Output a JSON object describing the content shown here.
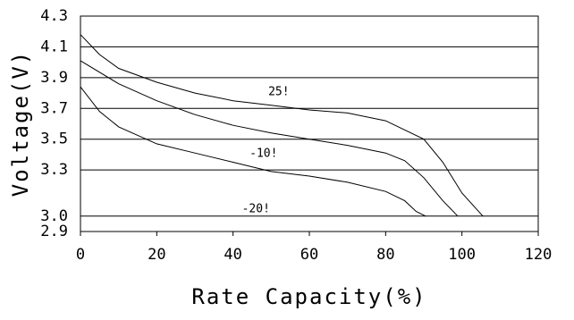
{
  "chart_data": {
    "type": "line",
    "x_label": "Rate Capacity(%)",
    "y_label": "Voltage(V)",
    "xlim": [
      0,
      120
    ],
    "xticks": [
      0,
      20,
      40,
      60,
      80,
      100,
      120
    ],
    "ylim": [
      2.9,
      4.3
    ],
    "yticks": [
      {
        "value": 4.3,
        "label": "4.3"
      },
      {
        "value": 4.1,
        "label": "4.1"
      },
      {
        "value": 3.9,
        "label": "3.9"
      },
      {
        "value": 3.7,
        "label": "3.7"
      },
      {
        "value": 3.5,
        "label": "3.5"
      },
      {
        "value": 3.3,
        "label": "3.3"
      },
      {
        "value": 3.0,
        "label": "3.0"
      },
      {
        "value": 2.9,
        "label": "2.9"
      }
    ],
    "grid": true,
    "color": "#000000",
    "series": [
      {
        "name": "25!",
        "color": "#000000",
        "x": [
          0,
          5,
          10,
          20,
          30,
          40,
          50,
          60,
          70,
          80,
          90,
          95,
          100,
          105.5
        ],
        "values": [
          4.18,
          4.05,
          3.96,
          3.87,
          3.8,
          3.75,
          3.72,
          3.69,
          3.67,
          3.62,
          3.5,
          3.35,
          3.15,
          3.0
        ]
      },
      {
        "name": "-10!",
        "color": "#000000",
        "x": [
          0,
          10,
          20,
          30,
          40,
          50,
          60,
          70,
          80,
          85,
          90,
          95,
          98.9
        ],
        "values": [
          4.01,
          3.86,
          3.75,
          3.66,
          3.59,
          3.54,
          3.5,
          3.46,
          3.41,
          3.36,
          3.25,
          3.1,
          3.0
        ]
      },
      {
        "name": "-20!",
        "color": "#000000",
        "x": [
          0,
          5,
          10,
          20,
          30,
          40,
          50,
          60,
          70,
          80,
          85,
          88,
          90.5
        ],
        "values": [
          3.84,
          3.68,
          3.58,
          3.47,
          3.41,
          3.35,
          3.29,
          3.26,
          3.22,
          3.16,
          3.1,
          3.03,
          3.0
        ]
      }
    ]
  }
}
